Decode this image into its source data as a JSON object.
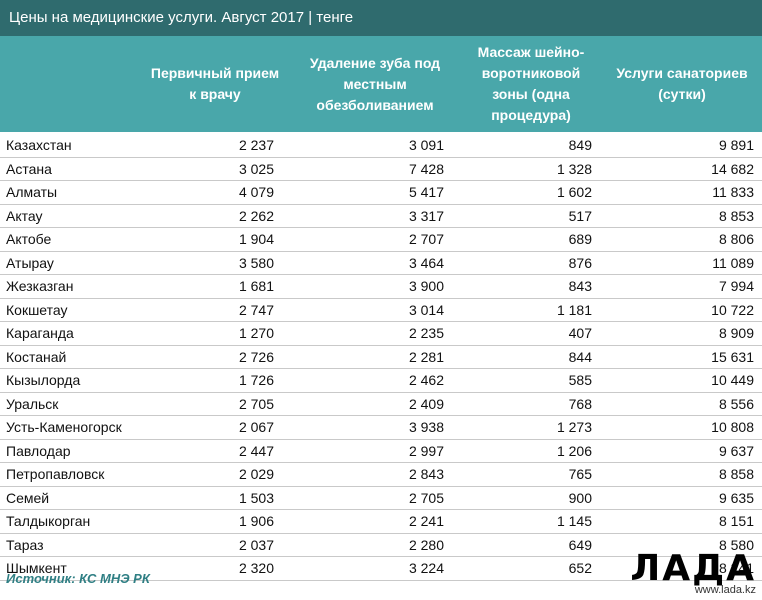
{
  "title": "Цены на медицинские услуги. Август 2017 | тенге",
  "headers": [
    "Первичный прием к врачу",
    "Удаление зуба под местным обезболиванием",
    "Массаж шейно-воротниковой зоны (одна процедура)",
    "Услуги санаториев (сутки)"
  ],
  "rows": [
    {
      "city": "Казахстан",
      "v1": "2 237",
      "v2": "3 091",
      "v3": "849",
      "v4": "9 891"
    },
    {
      "city": "Астана",
      "v1": "3 025",
      "v2": "7 428",
      "v3": "1 328",
      "v4": "14 682"
    },
    {
      "city": "Алматы",
      "v1": "4 079",
      "v2": "5 417",
      "v3": "1 602",
      "v4": "11 833"
    },
    {
      "city": "Актау",
      "v1": "2 262",
      "v2": "3 317",
      "v3": "517",
      "v4": "8 853"
    },
    {
      "city": "Актобе",
      "v1": "1 904",
      "v2": "2 707",
      "v3": "689",
      "v4": "8 806"
    },
    {
      "city": "Атырау",
      "v1": "3 580",
      "v2": "3 464",
      "v3": "876",
      "v4": "11 089"
    },
    {
      "city": "Жезказган",
      "v1": "1 681",
      "v2": "3 900",
      "v3": "843",
      "v4": "7 994"
    },
    {
      "city": "Кокшетау",
      "v1": "2 747",
      "v2": "3 014",
      "v3": "1 181",
      "v4": "10 722"
    },
    {
      "city": "Караганда",
      "v1": "1 270",
      "v2": "2 235",
      "v3": "407",
      "v4": "8 909"
    },
    {
      "city": "Костанай",
      "v1": "2 726",
      "v2": "2 281",
      "v3": "844",
      "v4": "15 631"
    },
    {
      "city": "Кызылорда",
      "v1": "1 726",
      "v2": "2 462",
      "v3": "585",
      "v4": "10 449"
    },
    {
      "city": "Уральск",
      "v1": "2 705",
      "v2": "2 409",
      "v3": "768",
      "v4": "8 556"
    },
    {
      "city": "Усть-Каменогорск",
      "v1": "2 067",
      "v2": "3 938",
      "v3": "1 273",
      "v4": "10 808"
    },
    {
      "city": "Павлодар",
      "v1": "2 447",
      "v2": "2 997",
      "v3": "1 206",
      "v4": "9 637"
    },
    {
      "city": "Петропавловск",
      "v1": "2 029",
      "v2": "2 843",
      "v3": "765",
      "v4": "8 858"
    },
    {
      "city": "Семей",
      "v1": "1 503",
      "v2": "2 705",
      "v3": "900",
      "v4": "9 635"
    },
    {
      "city": "Талдыкорган",
      "v1": "1 906",
      "v2": "2 241",
      "v3": "1 145",
      "v4": "8 151"
    },
    {
      "city": "Тараз",
      "v1": "2 037",
      "v2": "2 280",
      "v3": "649",
      "v4": "8 580"
    },
    {
      "city": "Шымкент",
      "v1": "2 320",
      "v2": "3 224",
      "v3": "652",
      "v4": "8 241"
    }
  ],
  "source": "Источник: КС МНЭ РК",
  "watermark": {
    "word": "ЛАДА",
    "site": "www.lada.kz"
  }
}
